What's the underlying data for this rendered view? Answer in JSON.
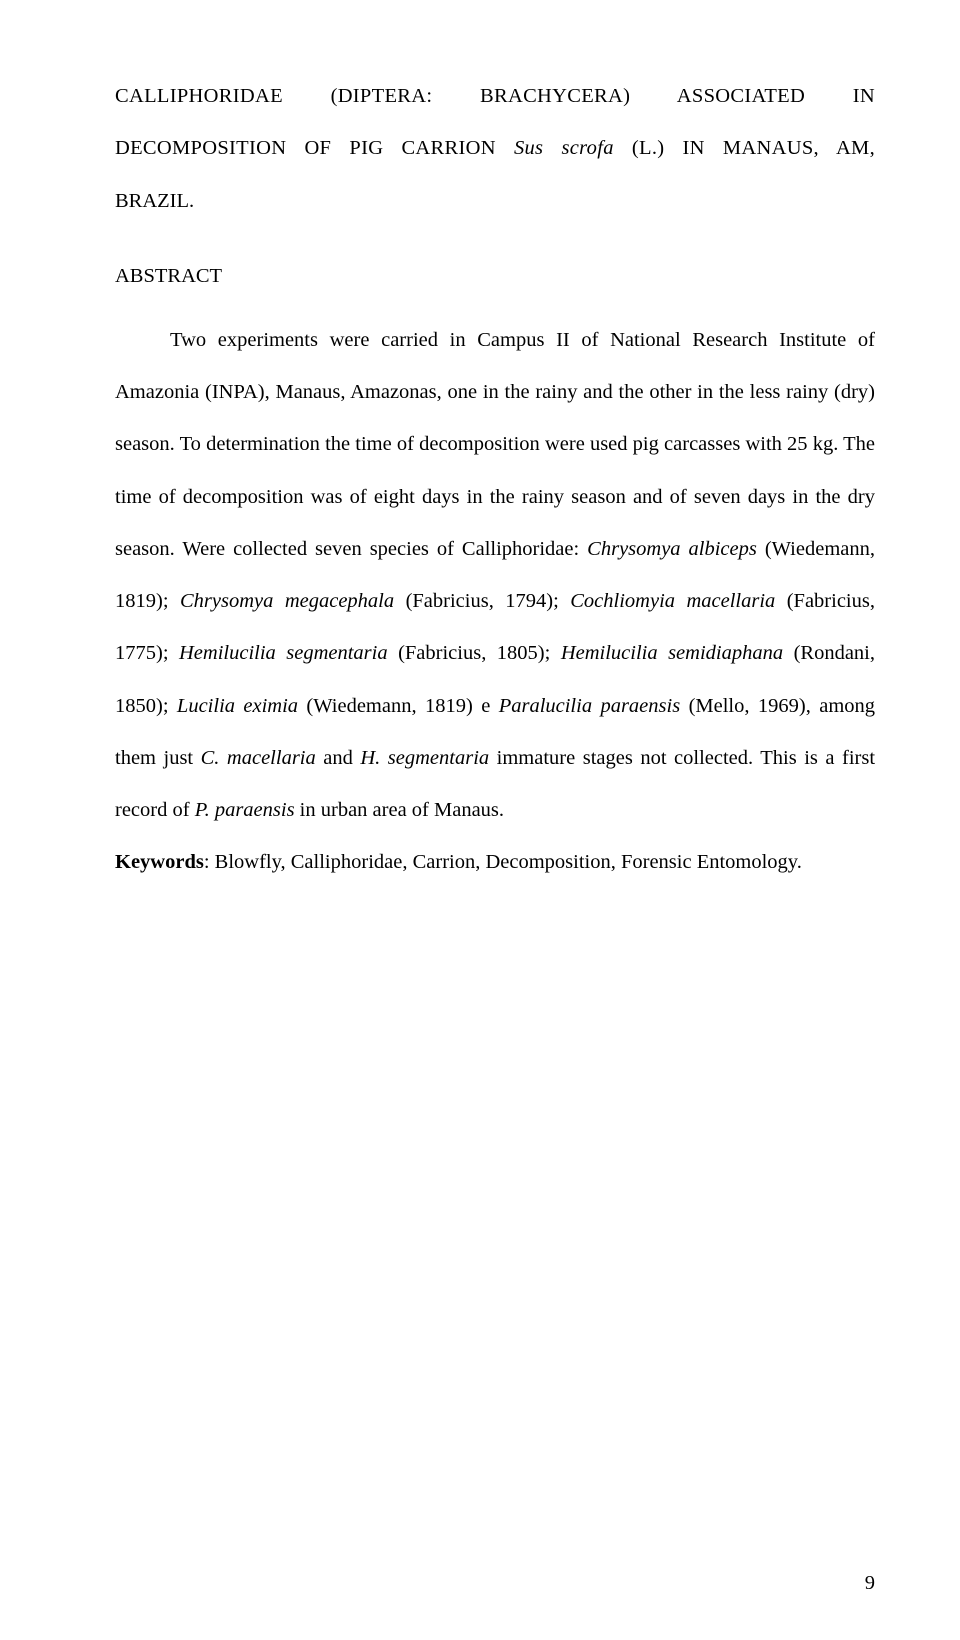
{
  "title": {
    "line1_part1": "CALLIPHORIDAE",
    "line1_part2": "(DIPTERA:",
    "line1_part3": "BRACHYCERA)",
    "line1_part4": "ASSOCIATED",
    "line1_part5": "IN",
    "line2_part1": "DECOMPOSITION OF PIG CARRION ",
    "line2_italic": "Sus scrofa",
    "line2_part2": " (L.) IN MANAUS, AM,",
    "line3": "BRAZIL."
  },
  "abstract": {
    "heading": "ABSTRACT",
    "body_part1": "Two experiments were carried in Campus II of National Research Institute of Amazonia (INPA), Manaus, Amazonas, one in the rainy and the other in the less rainy (dry) season. To determination the time of decomposition were used pig carcasses with 25 kg. The time of decomposition was of eight days in the rainy season and of seven days in the dry season. Were collected seven species of Calliphoridae: ",
    "sp1": "Chrysomya albiceps",
    "auth1": " (Wiedemann, 1819); ",
    "sp2": "Chrysomya megacephala",
    "auth2": " (Fabricius, 1794); ",
    "sp3": "Cochliomyia macellaria",
    "auth3": " (Fabricius, 1775); ",
    "sp4": "Hemilucilia segmentaria",
    "auth4": " (Fabricius, 1805); ",
    "sp5": "Hemilucilia semidiaphana",
    "auth5": " (Rondani, 1850); ",
    "sp6": "Lucilia eximia",
    "auth6": " (Wiedemann, 1819) e ",
    "sp7": "Paralucilia paraensis",
    "auth7": " (Mello, 1969), among them just ",
    "sp8": "C. macellaria",
    "mid": " and ",
    "sp9": "H. segmentaria",
    "body_part2": " immature stages not collected. This is a first record of ",
    "sp10": "P. paraensis",
    "body_part3": " in urban area of Manaus."
  },
  "keywords": {
    "label": "Keywords",
    "text": ": Blowfly, Calliphoridae, Carrion, Decomposition, Forensic Entomology."
  },
  "page_number": "9"
}
